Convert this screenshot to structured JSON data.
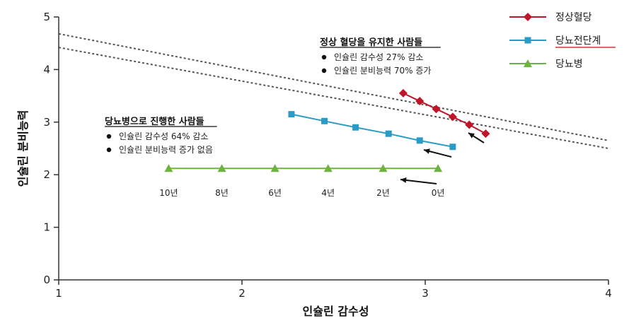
{
  "chart_data": {
    "type": "line",
    "title": "",
    "xlabel": "인슐린 감수성",
    "ylabel": "인슐린 분비능력",
    "xlim": [
      1,
      4
    ],
    "ylim": [
      0,
      5
    ],
    "x_ticks": [
      "1",
      "2",
      "3",
      "4"
    ],
    "y_ticks": [
      "0",
      "1",
      "2",
      "3",
      "4",
      "5"
    ],
    "grid": false,
    "legend_position": "top-right",
    "series": [
      {
        "name": "정상혈당",
        "color": "#c0142a",
        "marker": "diamond",
        "x": [
          2.88,
          2.97,
          3.06,
          3.15,
          3.24,
          3.33
        ],
        "y": [
          3.55,
          3.4,
          3.25,
          3.1,
          2.95,
          2.78
        ]
      },
      {
        "name": "당뇨전단계",
        "color": "#2a9bc4",
        "marker": "square",
        "x": [
          2.27,
          2.45,
          2.62,
          2.8,
          2.97,
          3.15
        ],
        "y": [
          3.15,
          3.02,
          2.9,
          2.78,
          2.65,
          2.53
        ]
      },
      {
        "name": "당뇨병",
        "color": "#6db33f",
        "marker": "triangle",
        "x": [
          1.6,
          1.89,
          2.18,
          2.47,
          2.77,
          3.07
        ],
        "y": [
          2.12,
          2.12,
          2.12,
          2.12,
          2.12,
          2.12
        ]
      }
    ],
    "reference_lines": [
      {
        "style": "dotted",
        "color": "#555555",
        "x": [
          1,
          4
        ],
        "y": [
          4.68,
          2.65
        ]
      },
      {
        "style": "dotted",
        "color": "#555555",
        "x": [
          1,
          4
        ],
        "y": [
          4.42,
          2.5
        ]
      }
    ],
    "year_labels": [
      {
        "text": "10년",
        "x": 1.6
      },
      {
        "text": "8년",
        "x": 1.89
      },
      {
        "text": "6년",
        "x": 2.18
      },
      {
        "text": "4년",
        "x": 2.47
      },
      {
        "text": "2년",
        "x": 2.77
      },
      {
        "text": "0년",
        "x": 3.07
      }
    ],
    "annotations": {
      "normal": {
        "title": "정상 혈당을 유지한 사람들",
        "items": [
          "인슐린 감수성 27% 감소",
          "인슐린 분비능력 70% 증가"
        ]
      },
      "diabetes": {
        "title": "당뇨병으로 진행한 사람들",
        "items": [
          "인슐린 감수성 64% 감소",
          "인슐린 분비능력 증가 없음"
        ]
      }
    }
  }
}
